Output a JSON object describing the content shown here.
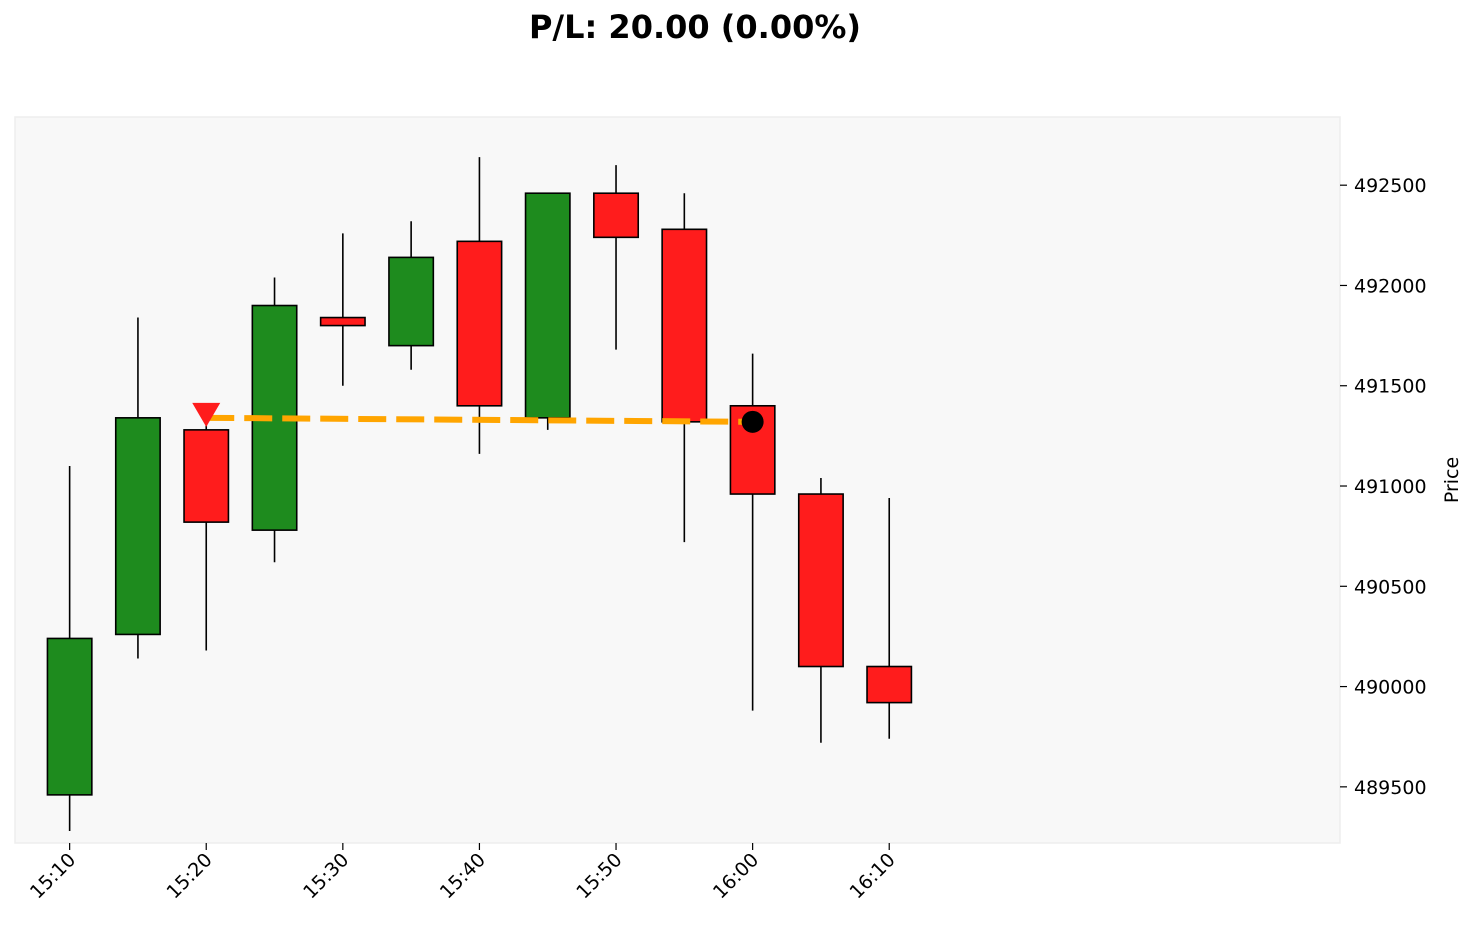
{
  "chart_data": {
    "type": "candlestick",
    "title": "P/L: 20.00 (0.00%)",
    "xlabel": "",
    "ylabel": "Price",
    "ylim": [
      489220,
      492840
    ],
    "xlim": [
      "15:06",
      "16:43"
    ],
    "grid": false,
    "colors": {
      "up": "#1e8b1e",
      "down": "#ff1c1c",
      "trade_line": "#ffa500",
      "entry_marker": "#ff1c1c",
      "exit_marker": "#000000",
      "plot_background": "#f8f8f8"
    },
    "x_ticks": [
      "15:10",
      "15:20",
      "15:30",
      "15:40",
      "15:50",
      "16:00",
      "16:10"
    ],
    "y_ticks": [
      489500,
      490000,
      490500,
      491000,
      491500,
      492000,
      492500
    ],
    "candles": [
      {
        "time": "15:10",
        "open": 489460,
        "high": 491100,
        "low": 489280,
        "close": 490240
      },
      {
        "time": "15:15",
        "open": 490260,
        "high": 491840,
        "low": 490140,
        "close": 491340
      },
      {
        "time": "15:20",
        "open": 491280,
        "high": 491340,
        "low": 490180,
        "close": 490820
      },
      {
        "time": "15:25",
        "open": 490780,
        "high": 492040,
        "low": 490620,
        "close": 491900
      },
      {
        "time": "15:30",
        "open": 491840,
        "high": 492260,
        "low": 491500,
        "close": 491800
      },
      {
        "time": "15:35",
        "open": 491700,
        "high": 492320,
        "low": 491580,
        "close": 492140
      },
      {
        "time": "15:40",
        "open": 492220,
        "high": 492640,
        "low": 491160,
        "close": 491400
      },
      {
        "time": "15:45",
        "open": 491340,
        "high": 492460,
        "low": 491280,
        "close": 492460
      },
      {
        "time": "15:50",
        "open": 492460,
        "high": 492600,
        "low": 491680,
        "close": 492240
      },
      {
        "time": "15:55",
        "open": 492280,
        "high": 492460,
        "low": 490720,
        "close": 491320
      },
      {
        "time": "16:00",
        "open": 491400,
        "high": 491660,
        "low": 489880,
        "close": 490960
      },
      {
        "time": "16:05",
        "open": 490960,
        "high": 491040,
        "low": 489720,
        "close": 490100
      },
      {
        "time": "16:10",
        "open": 490100,
        "high": 490940,
        "low": 489740,
        "close": 489920
      }
    ],
    "trade": {
      "entry": {
        "time": "15:20",
        "price": 491340,
        "marker": "down-triangle"
      },
      "exit": {
        "time": "16:00",
        "price": 491320,
        "marker": "circle"
      }
    }
  }
}
